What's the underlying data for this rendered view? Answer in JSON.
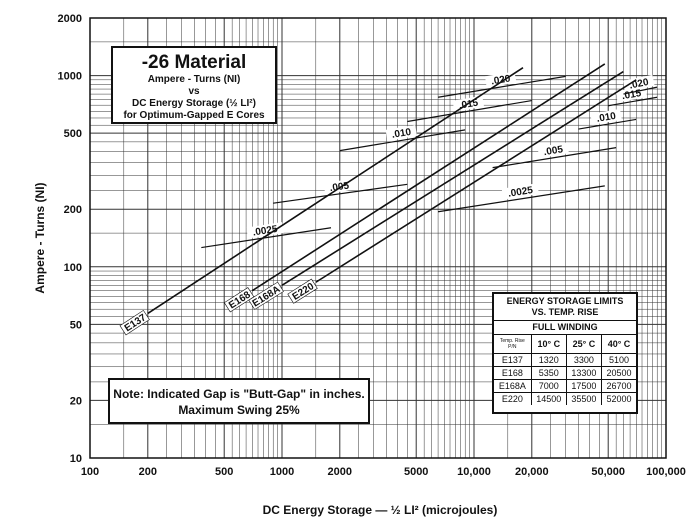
{
  "chart_data": {
    "type": "line",
    "title": "-26 Material",
    "subtitle": [
      "Ampere - Turns (NI)",
      "vs",
      "DC Energy Storage (½ LI²)",
      "for Optimum-Gapped E Cores"
    ],
    "xlabel": "DC Energy Storage — ½ LI² (microjoules)",
    "ylabel": "Ampere - Turns (NI)",
    "x_scale": "log",
    "y_scale": "log",
    "xlim": [
      100,
      100000
    ],
    "ylim": [
      10,
      2000
    ],
    "grid": true,
    "x_ticks": [
      100,
      200,
      500,
      1000,
      2000,
      5000,
      10000,
      20000,
      50000,
      100000
    ],
    "x_tick_labels": [
      "100",
      "200",
      "500",
      "1000",
      "2000",
      "5000",
      "10,000",
      "20,000",
      "50,000",
      "100,000"
    ],
    "y_ticks": [
      10,
      20,
      50,
      100,
      200,
      500,
      1000,
      2000
    ],
    "y_tick_labels": [
      "10",
      "20",
      "50",
      "100",
      "200",
      "500",
      "1000",
      "2000"
    ],
    "series": [
      {
        "name": "E137",
        "x": [
          200,
          18000
        ],
        "y": [
          57,
          1100
        ]
      },
      {
        "name": "E168",
        "x": [
          700,
          48000
        ],
        "y": [
          75,
          1150
        ]
      },
      {
        "name": "E168A",
        "x": [
          1000,
          60000
        ],
        "y": [
          80,
          1050
        ]
      },
      {
        "name": "E220",
        "x": [
          1500,
          70000
        ],
        "y": [
          83,
          950
        ]
      }
    ],
    "gap_lines": [
      {
        "label": ".0025",
        "x": [
          380,
          1800
        ],
        "y": [
          126,
          160
        ]
      },
      {
        "label": ".0025",
        "x": [
          6500,
          48000
        ],
        "y": [
          194,
          265
        ]
      },
      {
        "label": ".005",
        "x": [
          900,
          4500
        ],
        "y": [
          215,
          270
        ]
      },
      {
        "label": ".005",
        "x": [
          12500,
          55000
        ],
        "y": [
          330,
          420
        ]
      },
      {
        "label": ".010",
        "x": [
          2000,
          9000
        ],
        "y": [
          405,
          520
        ]
      },
      {
        "label": ".010",
        "x": [
          35000,
          70000
        ],
        "y": [
          525,
          590
        ]
      },
      {
        "label": ".015",
        "x": [
          4500,
          20000
        ],
        "y": [
          575,
          740
        ]
      },
      {
        "label": ".015",
        "x": [
          50000,
          90000
        ],
        "y": [
          695,
          770
        ]
      },
      {
        "label": ".020",
        "x": [
          6500,
          30000
        ],
        "y": [
          770,
          990
        ]
      },
      {
        "label": ".020",
        "x": [
          60000,
          90000
        ],
        "y": [
          800,
          870
        ]
      }
    ]
  },
  "note": {
    "line1": "Note: Indicated Gap is \"Butt-Gap\" in inches.",
    "line2": "Maximum Swing 25%"
  },
  "limits_table": {
    "title1": "ENERGY STORAGE LIMITS",
    "title2": "VS. TEMP. RISE",
    "subtitle": "FULL WINDING",
    "corner_top": "Temp. Rise",
    "corner_bottom": "P/N",
    "headers": [
      "10° C",
      "25° C",
      "40° C"
    ],
    "rows": [
      {
        "pn": "E137",
        "values": [
          "1320",
          "3300",
          "5100"
        ]
      },
      {
        "pn": "E168",
        "values": [
          "5350",
          "13300",
          "20500"
        ]
      },
      {
        "pn": "E168A",
        "values": [
          "7000",
          "17500",
          "26700"
        ]
      },
      {
        "pn": "E220",
        "values": [
          "14500",
          "35500",
          "52000"
        ]
      }
    ]
  }
}
